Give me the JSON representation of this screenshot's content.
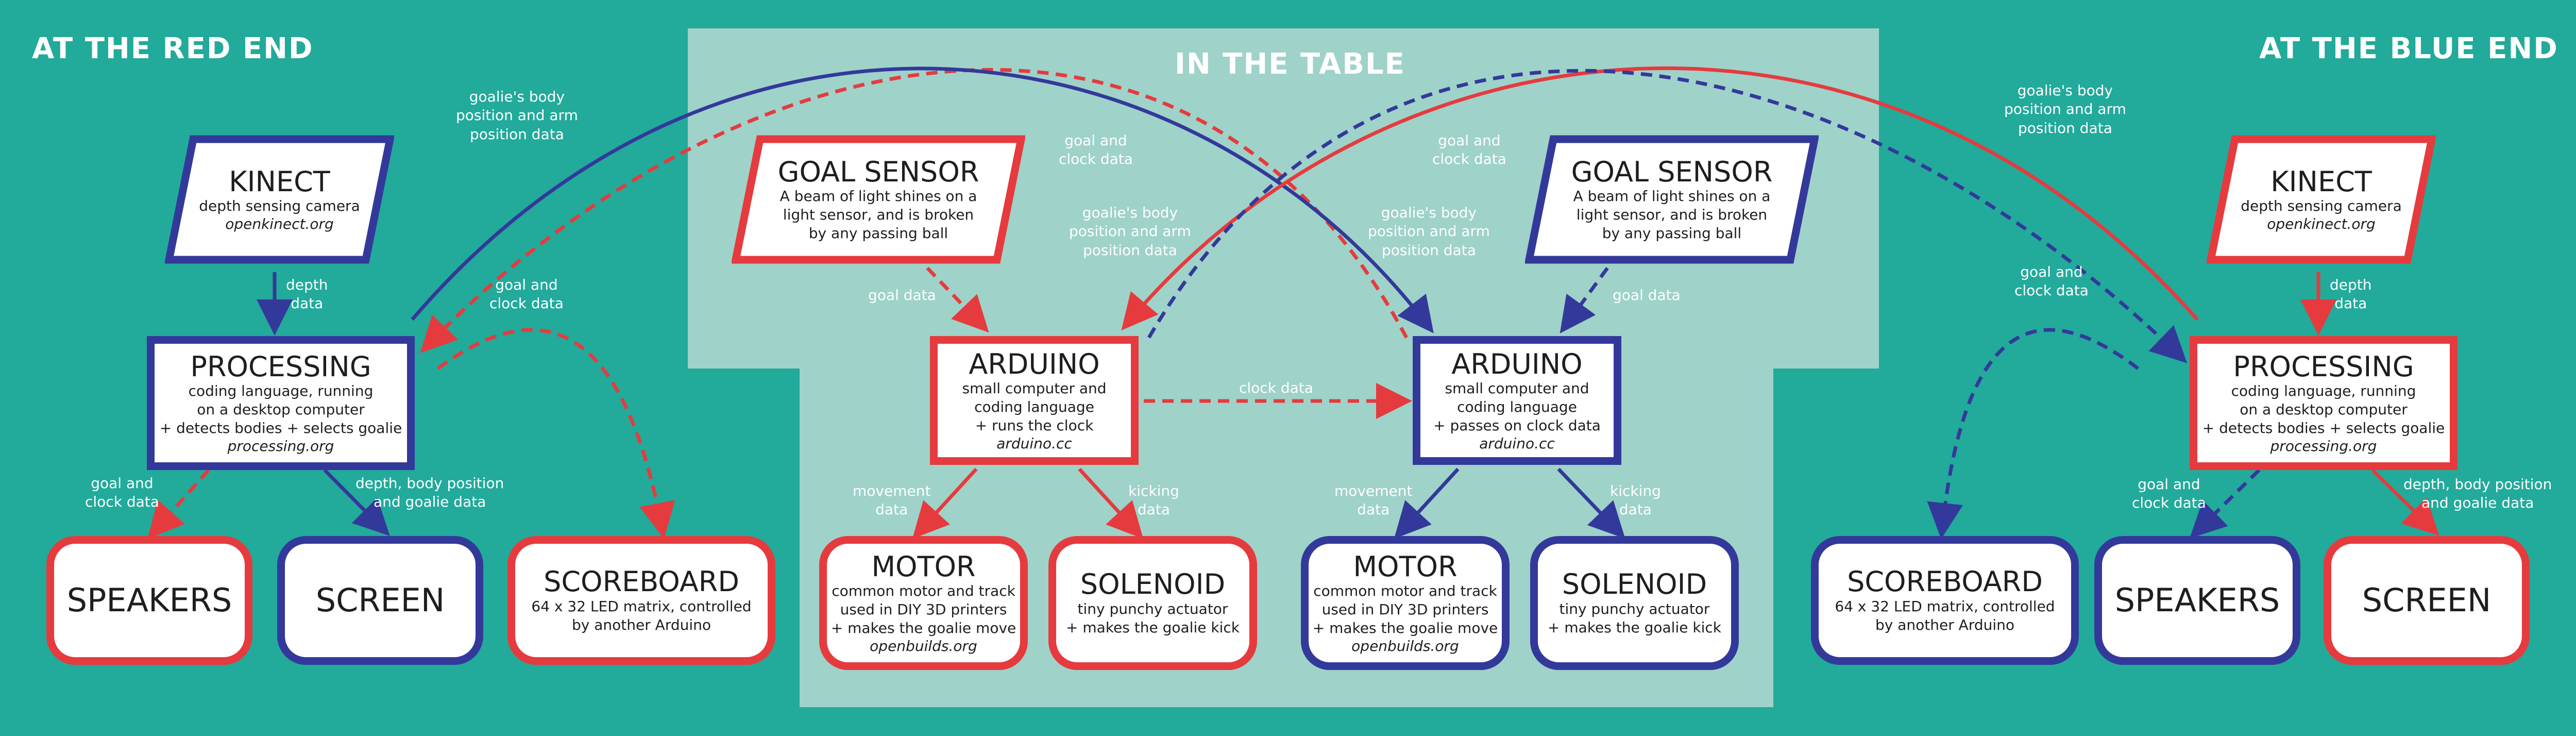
{
  "sections": {
    "red_end": "AT THE RED END",
    "table": "IN THE TABLE",
    "blue_end": "AT THE BLUE END"
  },
  "colors": {
    "background": "#22aa9b",
    "table": "#9fd2c9",
    "red": "#e53b3e",
    "blue": "#33399a"
  },
  "nodes": {
    "kinect_red": {
      "title": "KINECT",
      "desc": "depth sensing camera",
      "url": "openkinect.org"
    },
    "kinect_blue": {
      "title": "KINECT",
      "desc": "depth sensing camera",
      "url": "openkinect.org"
    },
    "processing_red": {
      "title": "PROCESSING",
      "desc1": "coding language, running",
      "desc2": "on a desktop computer",
      "desc3": "+ detects bodies + selects goalie",
      "url": "processing.org"
    },
    "processing_blue": {
      "title": "PROCESSING",
      "desc1": "coding language, running",
      "desc2": "on a desktop computer",
      "desc3": "+ detects bodies + selects goalie",
      "url": "processing.org"
    },
    "speakers_red": {
      "title": "SPEAKERS"
    },
    "screen_red": {
      "title": "SCREEN"
    },
    "scoreboard_red": {
      "title": "SCOREBOARD",
      "desc1": "64 x 32 LED matrix, controlled",
      "desc2": "by another Arduino"
    },
    "scoreboard_blue": {
      "title": "SCOREBOARD",
      "desc1": "64 x 32 LED matrix, controlled",
      "desc2": "by another Arduino"
    },
    "speakers_blue": {
      "title": "SPEAKERS"
    },
    "screen_blue": {
      "title": "SCREEN"
    },
    "goal_sensor_red": {
      "title": "GOAL SENSOR",
      "desc1": "A beam of light shines on a",
      "desc2": "light sensor, and is broken",
      "desc3": "by any passing ball"
    },
    "goal_sensor_blue": {
      "title": "GOAL SENSOR",
      "desc1": "A beam of light shines on a",
      "desc2": "light sensor, and is broken",
      "desc3": "by any passing ball"
    },
    "arduino_red": {
      "title": "ARDUINO",
      "desc1": "small computer and",
      "desc2": "coding language",
      "desc3": "+ runs the clock",
      "url": "arduino.cc"
    },
    "arduino_blue": {
      "title": "ARDUINO",
      "desc1": "small computer and",
      "desc2": "coding language",
      "desc3": "+ passes on clock data",
      "url": "arduino.cc"
    },
    "motor_red": {
      "title": "MOTOR",
      "desc1": "common motor and track",
      "desc2": "used in DIY 3D printers",
      "desc3": "+ makes the goalie move",
      "url": "openbuilds.org"
    },
    "motor_blue": {
      "title": "MOTOR",
      "desc1": "common motor and track",
      "desc2": "used in DIY 3D printers",
      "desc3": "+ makes the goalie move",
      "url": "openbuilds.org"
    },
    "solenoid_red": {
      "title": "SOLENOID",
      "desc1": "tiny punchy actuator",
      "desc2": "+ makes the goalie kick"
    },
    "solenoid_blue": {
      "title": "SOLENOID",
      "desc1": "tiny punchy actuator",
      "desc2": "+ makes the goalie kick"
    }
  },
  "labels": {
    "depth_data": "depth\ndata",
    "goal_clock_data": "goal and\nclock data",
    "depth_body_goalie": "depth, body position\nand goalie data",
    "goalie_body_arm": "goalie's body\nposition and arm\nposition data",
    "goal_data": "goal data",
    "clock_data": "clock data",
    "movement_data": "movement\ndata",
    "kicking_data": "kicking\ndata"
  }
}
